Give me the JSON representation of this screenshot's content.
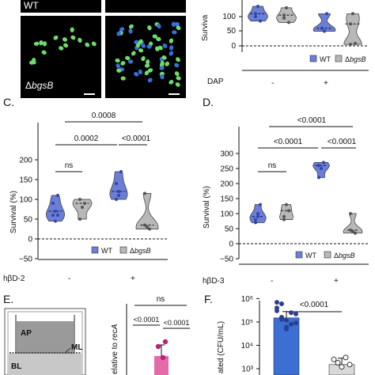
{
  "colors": {
    "wt": "#6b7fd6",
    "bgsb": "#b8b8b8",
    "bar": "#3b6fd4",
    "dot": "#2c3e8f",
    "wt_dot": "#3045b0",
    "micro_bg": "#000000",
    "micro_cell": "#6cdc6a"
  },
  "panel_top_left": {
    "label_wt": "WT",
    "label_bgsb_prefix": "Δ",
    "label_bgsb_ital": "bgsB"
  },
  "panel_top_right": {
    "ylabel": "Surviva",
    "yticks": [
      "100",
      "50",
      "0"
    ],
    "legend": {
      "wt": "WT",
      "bgsb_prefix": "Δ",
      "bgsb_ital": "bgsB"
    },
    "dap_label": "DAP",
    "condition_minus": "-",
    "condition_plus": "+"
  },
  "panel_c": {
    "letter": "C.",
    "ylabel": "Survival (%)",
    "yticks": [
      "200",
      "150",
      "100",
      "50",
      "0",
      "−50"
    ],
    "treatment": "hβD-2",
    "condition_minus": "-",
    "condition_plus": "+",
    "legend": {
      "wt": "WT",
      "bgsb_prefix": "Δ",
      "bgsb_ital": "bgsB"
    },
    "significance": {
      "ns": "ns",
      "p1": "0.0002",
      "p2": "<0.0001",
      "p3": "0.0008"
    }
  },
  "panel_d": {
    "letter": "D.",
    "ylabel": "Survival (%)",
    "yticks": [
      "300",
      "250",
      "200",
      "150",
      "100",
      "50",
      "0",
      "−50"
    ],
    "treatment": "hβD-3",
    "condition_minus": "-",
    "condition_plus": "+",
    "legend": {
      "wt": "WT",
      "bgsb_prefix": "Δ",
      "bgsb_ital": "bgsB"
    },
    "significance": {
      "ns": "ns",
      "p1": "<0.0001",
      "p2": "<0.0001",
      "p3": "<0.0001"
    }
  },
  "panel_e": {
    "letter": "E.",
    "labels": {
      "ap": "AP",
      "ml": "ML",
      "bl": "BL"
    },
    "ylabel_prefix": "elative to ",
    "ylabel_ital": "recA",
    "significance": {
      "ns": "ns",
      "p1": "<0.0001",
      "p2": "<0.0001"
    }
  },
  "panel_f": {
    "letter": "F.",
    "ylabel": "ated (CFU/mL)",
    "yticks": [
      "10⁶",
      "10⁵",
      "10⁴",
      "10³"
    ],
    "significance": {
      "p1": "<0.0001"
    }
  },
  "chart_data": [
    {
      "type": "violin",
      "panel": "top-right",
      "ylabel": "Surviva",
      "ylim": [
        -10,
        150
      ],
      "yticks": [
        0,
        50,
        100
      ],
      "categories": [
        "-",
        "+"
      ],
      "condition_label": "DAP",
      "series": [
        {
          "name": "WT",
          "values": [
            100,
            135,
            85,
            110,
            60,
            50,
            110
          ]
        },
        {
          "name": "ΔbgsB",
          "values": [
            95,
            130,
            80,
            105,
            75,
            110,
            8,
            5
          ]
        }
      ]
    },
    {
      "type": "violin",
      "panel": "C",
      "ylabel": "Survival (%)",
      "ylim": [
        -50,
        210
      ],
      "yticks": [
        -50,
        0,
        50,
        100,
        150,
        200
      ],
      "categories": [
        "-",
        "+"
      ],
      "condition_label": "hβD-2",
      "series": [
        {
          "name": "WT",
          "values": [
            60,
            70,
            110,
            90,
            45,
            60,
            100,
            120,
            170,
            140,
            110
          ]
        },
        {
          "name": "ΔbgsB",
          "values": [
            50,
            80,
            90,
            100,
            115,
            30,
            25,
            35
          ]
        }
      ],
      "comparisons": [
        {
          "label": "ns",
          "between": [
            "WT -",
            "ΔbgsB -"
          ]
        },
        {
          "label": "0.0002",
          "between": [
            "WT -",
            "WT +"
          ]
        },
        {
          "label": "<0.0001",
          "between": [
            "WT +",
            "ΔbgsB +"
          ]
        },
        {
          "label": "0.0008",
          "between": [
            "ΔbgsB -",
            "ΔbgsB +"
          ]
        }
      ]
    },
    {
      "type": "violin",
      "panel": "D",
      "ylabel": "Survival (%)",
      "ylim": [
        -50,
        320
      ],
      "yticks": [
        -50,
        0,
        50,
        100,
        150,
        200,
        250,
        300
      ],
      "categories": [
        "-",
        "+"
      ],
      "condition_label": "hβD-3",
      "series": [
        {
          "name": "WT",
          "values": [
            70,
            90,
            130,
            80,
            100,
            260,
            250,
            270,
            220
          ]
        },
        {
          "name": "ΔbgsB",
          "values": [
            80,
            130,
            110,
            90,
            100,
            40,
            35,
            45
          ]
        }
      ],
      "comparisons": [
        {
          "label": "ns",
          "between": [
            "WT -",
            "ΔbgsB -"
          ]
        },
        {
          "label": "<0.0001",
          "between": [
            "WT -",
            "WT +"
          ]
        },
        {
          "label": "<0.0001",
          "between": [
            "WT +",
            "ΔbgsB +"
          ]
        },
        {
          "label": "<0.0001",
          "between": [
            "ΔbgsB -",
            "ΔbgsB +"
          ]
        }
      ]
    },
    {
      "type": "bar",
      "panel": "F",
      "ylabel": "ated (CFU/mL)",
      "scale": "log",
      "yticks": [
        "10³",
        "10⁴",
        "10⁵",
        "10⁶"
      ],
      "series": [
        {
          "name": "WT",
          "mean": 150000
        },
        {
          "name": "ΔbgsB",
          "mean": 1500
        }
      ],
      "comparisons": [
        {
          "label": "<0.0001"
        }
      ]
    }
  ]
}
